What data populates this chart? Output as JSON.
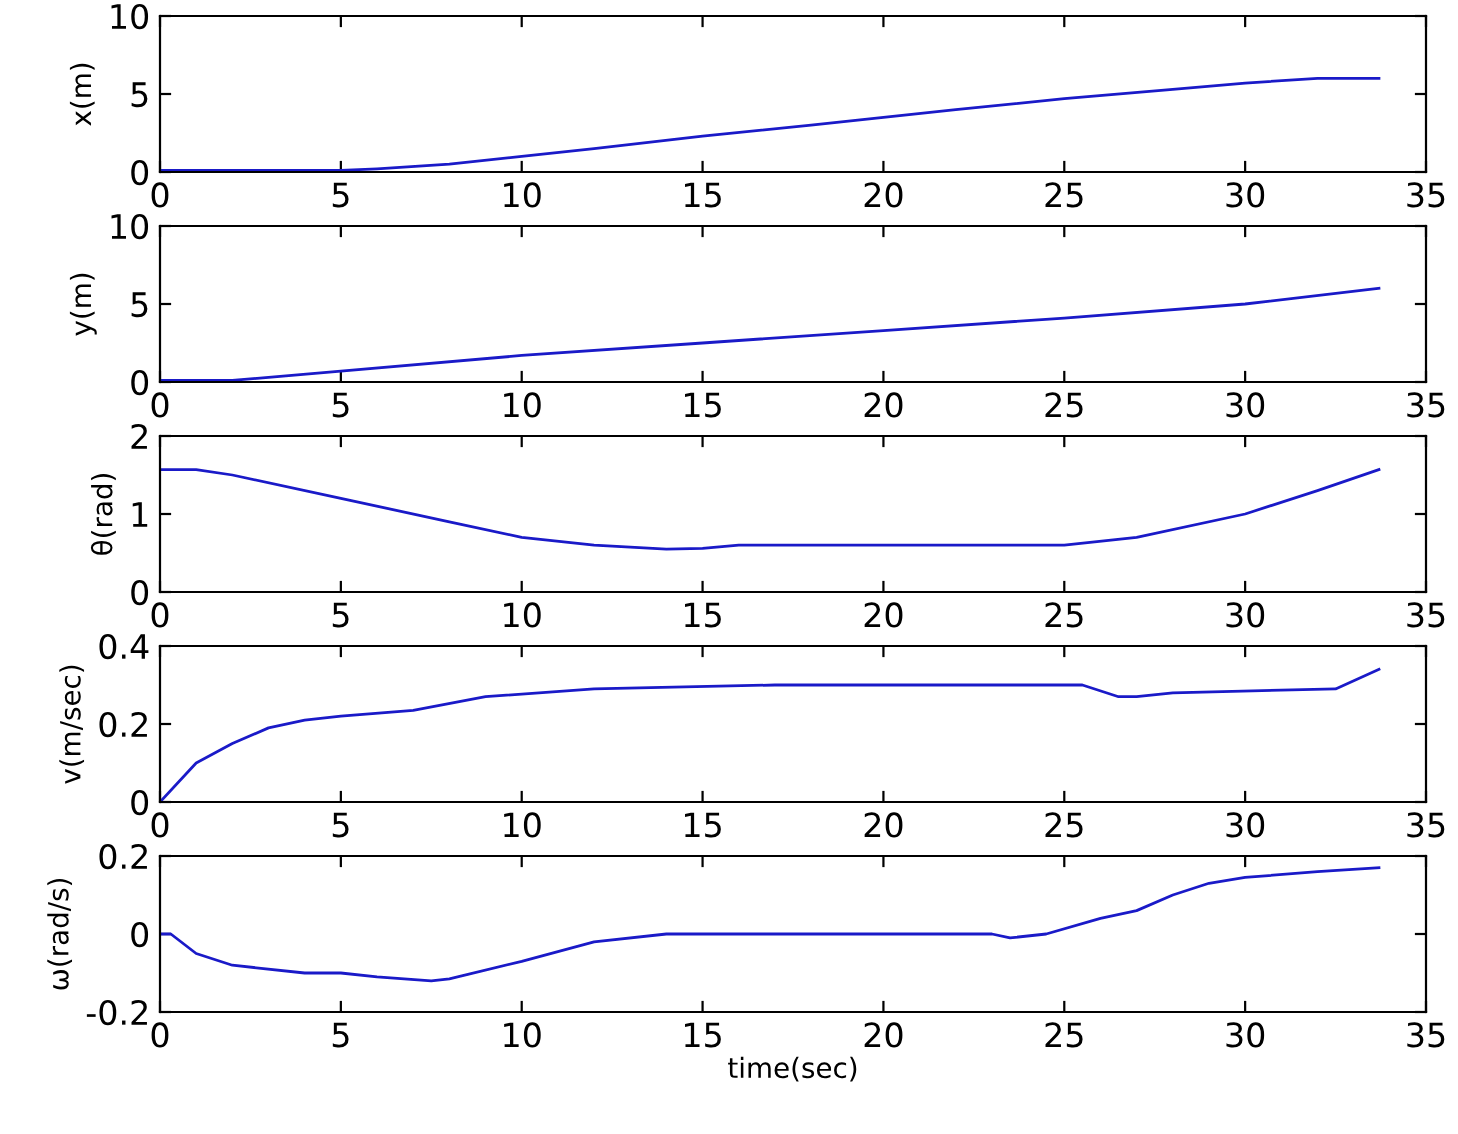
{
  "chart_data": [
    {
      "type": "line",
      "ylabel": "x(m)",
      "xlim": [
        0,
        35
      ],
      "xticks": [
        0,
        5,
        10,
        15,
        20,
        25,
        30,
        35
      ],
      "ylim": [
        0,
        10
      ],
      "yticks": [
        0,
        5,
        10
      ],
      "grid": false,
      "legend": false,
      "series": [
        {
          "color": "#1a1ac8",
          "x": [
            0,
            2,
            5,
            6,
            8,
            10,
            12,
            15,
            18,
            20,
            22,
            25,
            28,
            30,
            32,
            33.7
          ],
          "values": [
            0.1,
            0.1,
            0.1,
            0.2,
            0.5,
            1.0,
            1.5,
            2.3,
            3.0,
            3.5,
            4.0,
            4.7,
            5.3,
            5.7,
            6.0,
            6.0
          ]
        }
      ]
    },
    {
      "type": "line",
      "ylabel": "y(m)",
      "xlim": [
        0,
        35
      ],
      "xticks": [
        0,
        5,
        10,
        15,
        20,
        25,
        30,
        35
      ],
      "ylim": [
        0,
        10
      ],
      "yticks": [
        0,
        5,
        10
      ],
      "grid": false,
      "legend": false,
      "series": [
        {
          "color": "#1a1ac8",
          "x": [
            0,
            2,
            3,
            5,
            10,
            15,
            20,
            25,
            30,
            33.7
          ],
          "values": [
            0.1,
            0.1,
            0.3,
            0.7,
            1.7,
            2.5,
            3.3,
            4.1,
            5.0,
            6.0
          ]
        }
      ]
    },
    {
      "type": "line",
      "ylabel": "θ(rad)",
      "xlim": [
        0,
        35
      ],
      "xticks": [
        0,
        5,
        10,
        15,
        20,
        25,
        30,
        35
      ],
      "ylim": [
        0,
        2
      ],
      "yticks": [
        0,
        1,
        2
      ],
      "grid": false,
      "legend": false,
      "series": [
        {
          "color": "#1a1ac8",
          "x": [
            0,
            1,
            2,
            5,
            8,
            10,
            12,
            14,
            15,
            16,
            20,
            25,
            27,
            30,
            32,
            33.7
          ],
          "values": [
            1.57,
            1.57,
            1.5,
            1.2,
            0.9,
            0.7,
            0.6,
            0.55,
            0.56,
            0.6,
            0.6,
            0.6,
            0.7,
            1.0,
            1.3,
            1.57
          ]
        }
      ]
    },
    {
      "type": "line",
      "ylabel": "v(m/sec)",
      "xlim": [
        0,
        35
      ],
      "xticks": [
        0,
        5,
        10,
        15,
        20,
        25,
        30,
        35
      ],
      "ylim": [
        0,
        0.4
      ],
      "yticks": [
        0,
        0.2,
        0.4
      ],
      "grid": false,
      "legend": false,
      "series": [
        {
          "color": "#1a1ac8",
          "x": [
            0,
            1,
            2,
            3,
            4,
            5,
            7,
            9,
            12,
            17,
            25.5,
            26.5,
            27,
            28,
            32.5,
            33.7
          ],
          "values": [
            0,
            0.1,
            0.15,
            0.19,
            0.21,
            0.22,
            0.235,
            0.27,
            0.29,
            0.3,
            0.3,
            0.27,
            0.27,
            0.28,
            0.29,
            0.34
          ]
        }
      ]
    },
    {
      "type": "line",
      "ylabel": "ω(rad/s)",
      "xlabel": "time(sec)",
      "xlim": [
        0,
        35
      ],
      "xticks": [
        0,
        5,
        10,
        15,
        20,
        25,
        30,
        35
      ],
      "ylim": [
        -0.2,
        0.2
      ],
      "yticks": [
        -0.2,
        0,
        0.2
      ],
      "grid": false,
      "legend": false,
      "series": [
        {
          "color": "#1a1ac8",
          "x": [
            0,
            0.3,
            1,
            2,
            4,
            5,
            6,
            7.5,
            8,
            10,
            12,
            14,
            15,
            23,
            23.5,
            24.5,
            26,
            27,
            28,
            29,
            30,
            32,
            33.7
          ],
          "values": [
            0,
            0,
            -0.05,
            -0.08,
            -0.1,
            -0.1,
            -0.11,
            -0.12,
            -0.115,
            -0.07,
            -0.02,
            0,
            0,
            0,
            -0.01,
            0,
            0.04,
            0.06,
            0.1,
            0.13,
            0.145,
            0.16,
            0.17
          ]
        }
      ]
    }
  ]
}
